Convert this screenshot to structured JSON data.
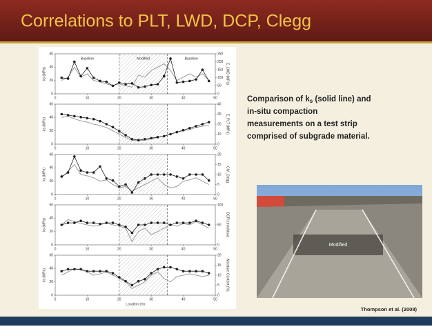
{
  "header": {
    "title": "Correlations to PLT, LWD, DCP, Clegg"
  },
  "caption": {
    "first": [
      "Comparison of k",
      "s",
      " (solid line) and"
    ],
    "lines": [
      "in-situ compaction",
      "measurements on a test strip",
      "comprised of subgrade material."
    ]
  },
  "photo": {
    "label": "Modified"
  },
  "citation": "Thompson et al. (2008)",
  "chart_data": [
    {
      "type": "line",
      "annotations": [
        "Baseline",
        "Modified",
        "Baseline"
      ],
      "ylabel": "ks (MPa)",
      "y2label": "E_LWD (MPa)",
      "x": [
        2,
        4,
        6,
        8,
        10,
        12,
        14,
        16,
        18,
        20,
        22,
        24,
        26,
        28,
        30,
        32,
        34,
        36,
        38,
        40,
        42,
        44,
        46,
        48
      ],
      "xlim": [
        0,
        50
      ],
      "xticks": [
        0,
        10,
        20,
        30,
        40,
        50
      ],
      "ylim": [
        0,
        60
      ],
      "yticks": [
        0,
        20,
        40,
        60
      ],
      "y2lim": [
        0,
        250
      ],
      "y2ticks": [
        0,
        50,
        100,
        150,
        200,
        250
      ],
      "shaded_region": [
        20,
        35
      ],
      "series": [
        {
          "color": "#9a9a9a",
          "values": [
            20,
            25,
            40,
            25,
            30,
            20,
            18,
            15,
            12,
            15,
            12,
            10,
            28,
            25,
            35,
            40,
            45,
            35,
            20,
            25,
            30,
            25,
            30,
            20
          ]
        },
        {
          "color": "#222222",
          "axis": "y2",
          "marker": true,
          "values": [
            100,
            95,
            200,
            110,
            160,
            100,
            80,
            75,
            50,
            70,
            60,
            65,
            40,
            45,
            55,
            60,
            110,
            220,
            70,
            75,
            80,
            90,
            150,
            80
          ]
        }
      ]
    },
    {
      "type": "line",
      "ylabel": "ks (MPa)",
      "y2label": "E_PLT (MPa)",
      "x": [
        2,
        4,
        6,
        8,
        10,
        12,
        14,
        16,
        18,
        20,
        22,
        24,
        26,
        28,
        30,
        32,
        34,
        36,
        38,
        40,
        42,
        44,
        46,
        48
      ],
      "xlim": [
        0,
        50
      ],
      "xticks": [
        0,
        10,
        20,
        30,
        40,
        50
      ],
      "ylim": [
        0,
        60
      ],
      "yticks": [
        0,
        20,
        40,
        60
      ],
      "y2lim": [
        0,
        40
      ],
      "y2ticks": [
        0,
        10,
        20,
        30,
        40
      ],
      "shaded_region": [
        20,
        35
      ],
      "series": [
        {
          "color": "#9a9a9a",
          "values": [
            40,
            42,
            38,
            35,
            33,
            30,
            28,
            25,
            20,
            15,
            10,
            6,
            5,
            6,
            8,
            10,
            12,
            15,
            18,
            20,
            22,
            25,
            27,
            28
          ]
        },
        {
          "color": "#222222",
          "axis": "y2",
          "marker": true,
          "values": [
            30,
            29,
            28,
            27,
            26,
            25,
            23,
            20,
            17,
            13,
            9,
            5,
            4,
            5,
            6,
            7,
            8,
            10,
            12,
            14,
            16,
            18,
            20,
            22
          ]
        }
      ]
    },
    {
      "type": "line",
      "ylabel": "ks (MPa)",
      "y2label": "CIV_Clegg",
      "x": [
        2,
        4,
        6,
        8,
        10,
        12,
        14,
        16,
        18,
        20,
        22,
        24,
        26,
        28,
        30,
        32,
        34,
        36,
        38,
        40,
        42,
        44,
        46,
        48
      ],
      "xlim": [
        0,
        50
      ],
      "xticks": [
        0,
        10,
        20,
        30,
        40,
        50
      ],
      "ylim": [
        0,
        60
      ],
      "yticks": [
        0,
        20,
        40,
        60
      ],
      "y2lim": [
        0,
        20
      ],
      "y2ticks": [
        0,
        5,
        10,
        15,
        20
      ],
      "shaded_region": [
        20,
        35
      ],
      "series": [
        {
          "color": "#9a9a9a",
          "values": [
            25,
            35,
            45,
            30,
            28,
            25,
            20,
            22,
            15,
            10,
            12,
            5,
            10,
            15,
            20,
            25,
            15,
            10,
            12,
            20,
            22,
            25,
            20,
            15
          ]
        },
        {
          "color": "#222222",
          "axis": "y2",
          "marker": true,
          "values": [
            9,
            11,
            19,
            12,
            11,
            11,
            14,
            8,
            7,
            4,
            5,
            1,
            6,
            8,
            10,
            10,
            10,
            10,
            9,
            8,
            10,
            10,
            10,
            7
          ]
        }
      ]
    },
    {
      "type": "line",
      "ylabel": "ks (MPa)",
      "y2label": "DCPI (mm/blow)",
      "x": [
        2,
        4,
        6,
        8,
        10,
        12,
        14,
        16,
        18,
        20,
        22,
        24,
        26,
        28,
        30,
        32,
        34,
        36,
        38,
        40,
        42,
        44,
        46,
        48
      ],
      "xlim": [
        0,
        50
      ],
      "xticks": [
        0,
        10,
        20,
        30,
        40,
        50
      ],
      "ylim": [
        0,
        60
      ],
      "yticks": [
        0,
        20,
        40,
        60
      ],
      "y2lim": [
        0,
        100
      ],
      "y2ticks": [
        0,
        50,
        100
      ],
      "shaded_region": [
        20,
        35
      ],
      "series": [
        {
          "color": "#9a9a9a",
          "values": [
            30,
            38,
            35,
            32,
            30,
            28,
            30,
            33,
            30,
            28,
            25,
            5,
            20,
            25,
            15,
            20,
            25,
            30,
            28,
            32,
            30,
            35,
            30,
            25
          ]
        },
        {
          "color": "#222222",
          "axis": "y2",
          "marker": true,
          "values": [
            50,
            55,
            55,
            60,
            55,
            55,
            52,
            55,
            55,
            50,
            45,
            30,
            50,
            50,
            55,
            55,
            55,
            50,
            55,
            55,
            55,
            60,
            55,
            50
          ]
        }
      ]
    },
    {
      "type": "line",
      "ylabel": "ks (MPa)",
      "y2label": "Moisture Content (%)",
      "xlabel": "Location (m)",
      "x": [
        2,
        4,
        6,
        8,
        10,
        12,
        14,
        16,
        18,
        20,
        22,
        24,
        26,
        28,
        30,
        32,
        34,
        36,
        38,
        40,
        42,
        44,
        46,
        48
      ],
      "xlim": [
        0,
        50
      ],
      "xticks": [
        0,
        10,
        20,
        30,
        40,
        50
      ],
      "ylim": [
        0,
        60
      ],
      "yticks": [
        0,
        20,
        40,
        60
      ],
      "y2lim": [
        0,
        20
      ],
      "y2ticks": [
        0,
        5,
        10,
        15,
        20
      ],
      "shaded_region": [
        20,
        35
      ],
      "series": [
        {
          "color": "#9a9a9a",
          "values": [
            30,
            35,
            40,
            38,
            35,
            30,
            32,
            35,
            30,
            25,
            20,
            10,
            15,
            20,
            30,
            35,
            25,
            20,
            28,
            30,
            32,
            30,
            28,
            30
          ]
        },
        {
          "color": "#222222",
          "axis": "y2",
          "marker": true,
          "values": [
            12,
            13,
            13,
            13,
            12,
            12,
            12,
            12,
            11,
            9,
            7,
            5,
            7,
            8,
            11,
            13,
            14,
            14,
            13,
            12,
            12,
            12,
            12,
            11
          ]
        }
      ]
    }
  ]
}
